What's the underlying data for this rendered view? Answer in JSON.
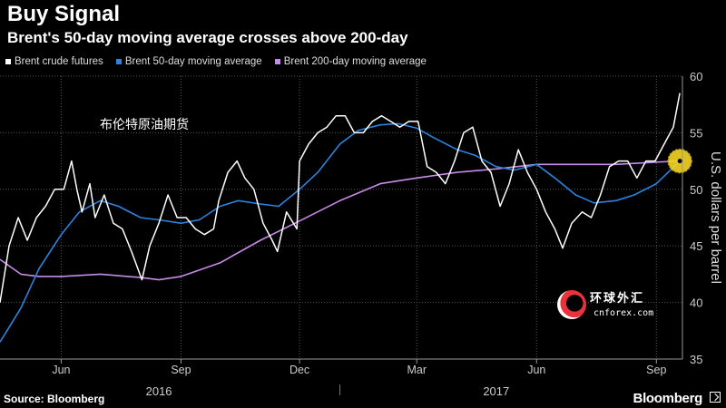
{
  "header": {
    "title": "Buy Signal",
    "subtitle": "Brent's 50-day moving average crosses above 200-day"
  },
  "legend": [
    {
      "label": "Brent crude futures",
      "color": "#ffffff"
    },
    {
      "label": "Brent 50-day moving average",
      "color": "#2a84e0"
    },
    {
      "label": "Brent 200-day moving average",
      "color": "#c78be8"
    }
  ],
  "footer": {
    "source": "Source: Bloomberg",
    "brand": "Bloomberg"
  },
  "watermark": {
    "text": "环球外汇",
    "sub": "cnforex.com",
    "annotation": "布伦特原油期货"
  },
  "chart_data": {
    "type": "line",
    "title": "Buy Signal",
    "ylabel": "U.S. dollars per barrel",
    "ylim": [
      35,
      60
    ],
    "yticks": [
      35,
      40,
      45,
      50,
      55,
      60
    ],
    "xlim": [
      "2016-04-15",
      "2017-09-21"
    ],
    "xticks": [
      {
        "label": "Jun",
        "date": "2016-06-01"
      },
      {
        "label": "Sep",
        "date": "2016-09-01"
      },
      {
        "label": "Dec",
        "date": "2016-12-01"
      },
      {
        "label": "Mar",
        "date": "2017-03-01"
      },
      {
        "label": "Jun",
        "date": "2017-06-01"
      },
      {
        "label": "Sep",
        "date": "2017-09-01"
      }
    ],
    "year_labels": [
      {
        "label": "2016",
        "date": "2016-08-15"
      },
      {
        "label": "2017",
        "date": "2017-05-01"
      }
    ],
    "grid": true,
    "legend_position": "top-left",
    "highlight": {
      "date": "2017-09-19",
      "value": 52.5,
      "color": "#f5d623"
    },
    "series": [
      {
        "name": "Brent crude futures",
        "color": "#ffffff",
        "points": [
          [
            "2016-04-15",
            40.0
          ],
          [
            "2016-04-22",
            45.0
          ],
          [
            "2016-04-29",
            47.5
          ],
          [
            "2016-05-06",
            45.5
          ],
          [
            "2016-05-13",
            47.5
          ],
          [
            "2016-05-20",
            48.5
          ],
          [
            "2016-05-27",
            50.0
          ],
          [
            "2016-06-03",
            50.0
          ],
          [
            "2016-06-09",
            52.5
          ],
          [
            "2016-06-13",
            50.0
          ],
          [
            "2016-06-17",
            48.0
          ],
          [
            "2016-06-23",
            50.5
          ],
          [
            "2016-06-27",
            47.5
          ],
          [
            "2016-07-04",
            49.5
          ],
          [
            "2016-07-11",
            47.0
          ],
          [
            "2016-07-18",
            46.5
          ],
          [
            "2016-07-25",
            44.5
          ],
          [
            "2016-08-02",
            42.0
          ],
          [
            "2016-08-08",
            45.0
          ],
          [
            "2016-08-15",
            47.0
          ],
          [
            "2016-08-22",
            49.5
          ],
          [
            "2016-08-29",
            47.5
          ],
          [
            "2016-09-05",
            47.5
          ],
          [
            "2016-09-12",
            46.5
          ],
          [
            "2016-09-19",
            46.0
          ],
          [
            "2016-09-26",
            46.5
          ],
          [
            "2016-09-30",
            49.0
          ],
          [
            "2016-10-07",
            51.5
          ],
          [
            "2016-10-14",
            52.5
          ],
          [
            "2016-10-20",
            51.0
          ],
          [
            "2016-10-27",
            50.0
          ],
          [
            "2016-11-03",
            47.0
          ],
          [
            "2016-11-10",
            45.5
          ],
          [
            "2016-11-14",
            44.5
          ],
          [
            "2016-11-21",
            48.0
          ],
          [
            "2016-11-29",
            46.5
          ],
          [
            "2016-12-01",
            52.5
          ],
          [
            "2016-12-08",
            54.0
          ],
          [
            "2016-12-15",
            55.0
          ],
          [
            "2016-12-22",
            55.5
          ],
          [
            "2016-12-29",
            56.5
          ],
          [
            "2017-01-05",
            56.5
          ],
          [
            "2017-01-12",
            55.0
          ],
          [
            "2017-01-19",
            55.0
          ],
          [
            "2017-01-26",
            56.0
          ],
          [
            "2017-02-02",
            56.5
          ],
          [
            "2017-02-09",
            56.0
          ],
          [
            "2017-02-16",
            55.5
          ],
          [
            "2017-02-23",
            56.0
          ],
          [
            "2017-03-02",
            56.0
          ],
          [
            "2017-03-09",
            52.0
          ],
          [
            "2017-03-16",
            51.5
          ],
          [
            "2017-03-23",
            50.5
          ],
          [
            "2017-03-30",
            52.5
          ],
          [
            "2017-04-06",
            55.0
          ],
          [
            "2017-04-13",
            55.5
          ],
          [
            "2017-04-20",
            52.5
          ],
          [
            "2017-04-27",
            51.5
          ],
          [
            "2017-05-04",
            48.5
          ],
          [
            "2017-05-11",
            50.5
          ],
          [
            "2017-05-18",
            53.5
          ],
          [
            "2017-05-25",
            51.5
          ],
          [
            "2017-06-01",
            50.0
          ],
          [
            "2017-06-08",
            48.0
          ],
          [
            "2017-06-15",
            46.5
          ],
          [
            "2017-06-21",
            44.8
          ],
          [
            "2017-06-28",
            47.0
          ],
          [
            "2017-07-06",
            48.0
          ],
          [
            "2017-07-13",
            47.5
          ],
          [
            "2017-07-20",
            49.5
          ],
          [
            "2017-07-27",
            52.0
          ],
          [
            "2017-08-03",
            52.5
          ],
          [
            "2017-08-10",
            52.5
          ],
          [
            "2017-08-17",
            51.0
          ],
          [
            "2017-08-24",
            52.5
          ],
          [
            "2017-08-31",
            52.5
          ],
          [
            "2017-09-07",
            54.0
          ],
          [
            "2017-09-14",
            55.5
          ],
          [
            "2017-09-19",
            58.5
          ]
        ]
      },
      {
        "name": "Brent 50-day moving average",
        "color": "#2a84e0",
        "points": [
          [
            "2016-04-15",
            36.5
          ],
          [
            "2016-05-01",
            39.5
          ],
          [
            "2016-05-15",
            43.0
          ],
          [
            "2016-06-01",
            46.0
          ],
          [
            "2016-06-15",
            48.0
          ],
          [
            "2016-07-01",
            49.0
          ],
          [
            "2016-07-15",
            48.5
          ],
          [
            "2016-08-01",
            47.5
          ],
          [
            "2016-08-15",
            47.3
          ],
          [
            "2016-09-01",
            47.0
          ],
          [
            "2016-09-15",
            47.3
          ],
          [
            "2016-10-01",
            48.5
          ],
          [
            "2016-10-15",
            49.0
          ],
          [
            "2016-11-01",
            48.7
          ],
          [
            "2016-11-15",
            48.5
          ],
          [
            "2016-12-01",
            50.0
          ],
          [
            "2016-12-15",
            51.5
          ],
          [
            "2017-01-01",
            54.0
          ],
          [
            "2017-01-15",
            55.2
          ],
          [
            "2017-02-01",
            55.7
          ],
          [
            "2017-02-15",
            55.8
          ],
          [
            "2017-03-01",
            55.4
          ],
          [
            "2017-03-15",
            54.5
          ],
          [
            "2017-04-01",
            53.5
          ],
          [
            "2017-04-15",
            53.0
          ],
          [
            "2017-05-01",
            52.0
          ],
          [
            "2017-05-15",
            51.7
          ],
          [
            "2017-06-01",
            52.2
          ],
          [
            "2017-06-15",
            51.0
          ],
          [
            "2017-07-01",
            49.5
          ],
          [
            "2017-07-15",
            48.8
          ],
          [
            "2017-08-01",
            49.0
          ],
          [
            "2017-08-15",
            49.5
          ],
          [
            "2017-09-01",
            50.5
          ],
          [
            "2017-09-19",
            52.5
          ]
        ]
      },
      {
        "name": "Brent 200-day moving average",
        "color": "#c78be8",
        "points": [
          [
            "2016-04-15",
            43.8
          ],
          [
            "2016-05-01",
            42.5
          ],
          [
            "2016-05-15",
            42.3
          ],
          [
            "2016-06-01",
            42.3
          ],
          [
            "2016-07-01",
            42.5
          ],
          [
            "2016-08-01",
            42.2
          ],
          [
            "2016-08-15",
            42.0
          ],
          [
            "2016-09-01",
            42.3
          ],
          [
            "2016-10-01",
            43.5
          ],
          [
            "2016-11-01",
            45.5
          ],
          [
            "2016-12-01",
            47.2
          ],
          [
            "2017-01-01",
            49.0
          ],
          [
            "2017-02-01",
            50.5
          ],
          [
            "2017-03-01",
            51.0
          ],
          [
            "2017-04-01",
            51.5
          ],
          [
            "2017-05-01",
            51.8
          ],
          [
            "2017-06-01",
            52.2
          ],
          [
            "2017-07-01",
            52.2
          ],
          [
            "2017-08-01",
            52.2
          ],
          [
            "2017-09-01",
            52.4
          ],
          [
            "2017-09-19",
            52.5
          ]
        ]
      }
    ]
  }
}
